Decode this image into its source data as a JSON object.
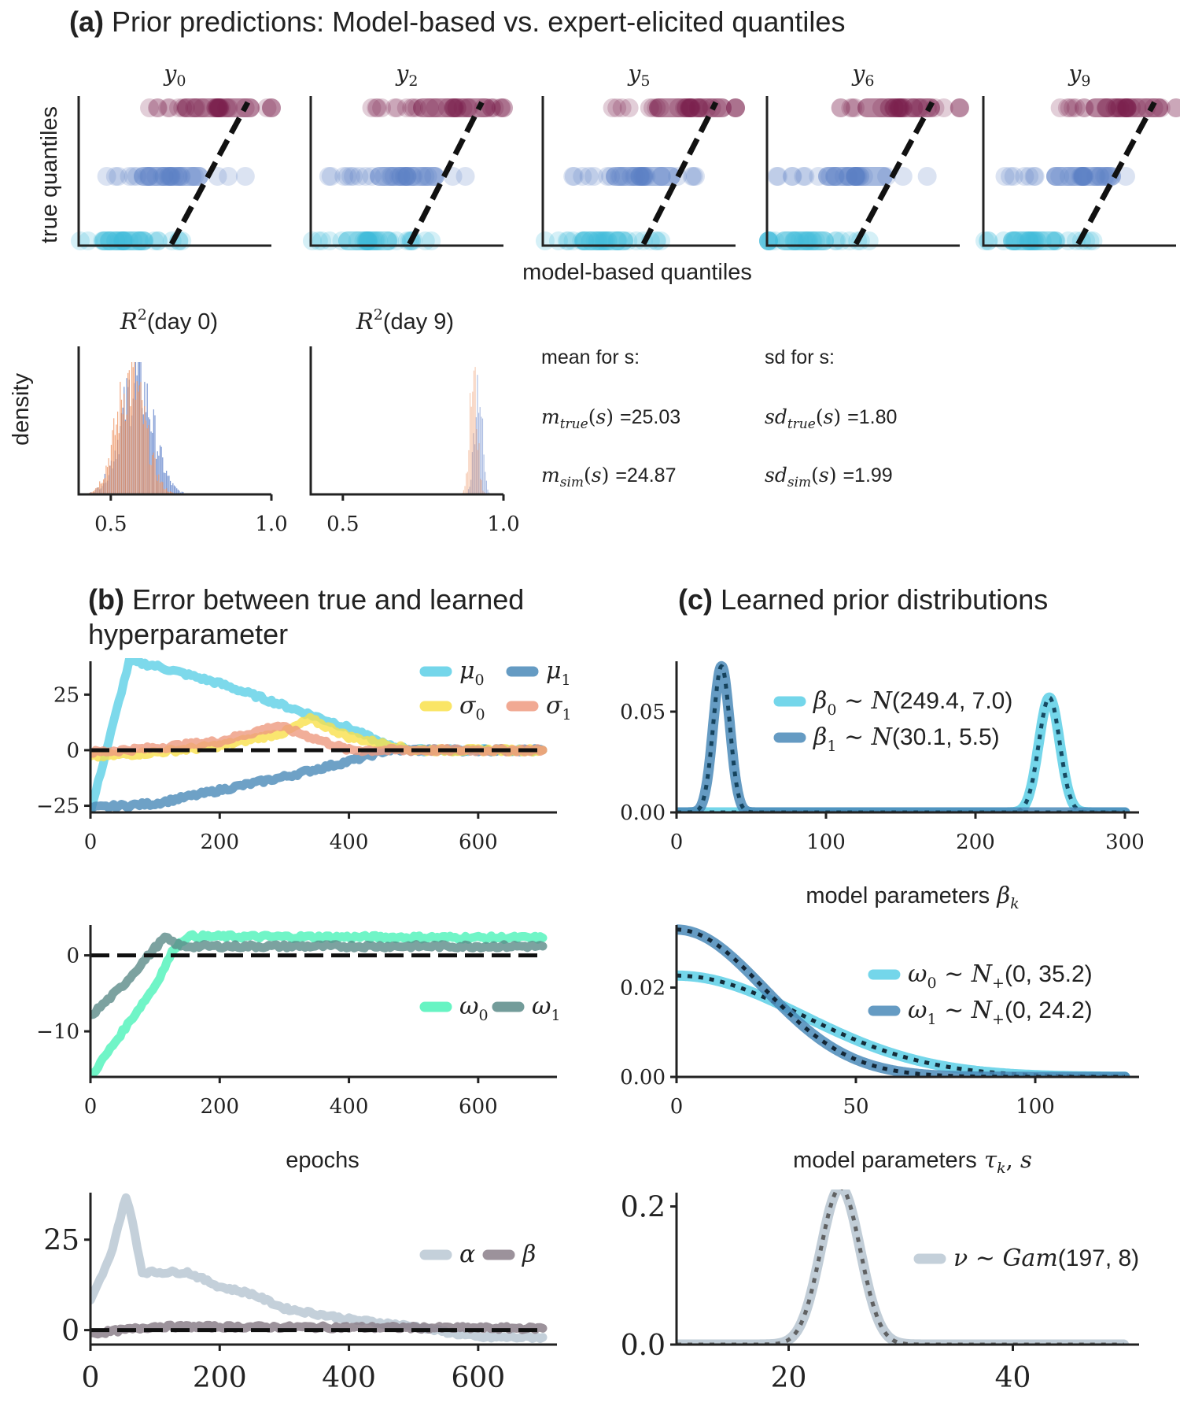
{
  "panel_a": {
    "title_bold": "(a)",
    "title_rest": " Prior predictions: Model-based vs. expert-elicited quantiles",
    "ylabel": "true quantiles",
    "xlabel": "model-based quantiles",
    "subplot_titles": [
      "y0",
      "y2",
      "y5",
      "y6",
      "y9"
    ],
    "subplot_title_subs": [
      "0",
      "2",
      "5",
      "6",
      "9"
    ]
  },
  "r2": {
    "ylabel": "density",
    "titles": [
      "R² (day 0)",
      "R² (day 9)"
    ],
    "title_suffixes": [
      "(day 0)",
      "(day 9)"
    ],
    "xticks": [
      "0.5",
      "1.0"
    ],
    "mean_header": "mean for s:",
    "sd_header": "sd for s:",
    "m_true": "=25.03",
    "m_sim": "=24.87",
    "sd_true": "=1.80",
    "sd_sim": "=1.99"
  },
  "panel_b": {
    "title_bold": "(b)",
    "title_line1": " Error between true and learned",
    "title_line2": "hyperparameter",
    "xlabel": "epochs"
  },
  "panel_c": {
    "title_bold": "(c)",
    "title_rest": " Learned prior distributions",
    "xlabel1": "model parameters",
    "xlabel2": "model parameters"
  },
  "colors": {
    "cyan": "#5ccfe6",
    "blue": "#4a8ab8",
    "yellow": "#f9e04b",
    "salmon": "#ee9a80",
    "mint": "#4cf2b9",
    "teal": "#5b8b88",
    "grayblue": "#bac8d3",
    "mauve": "#8b7f8a",
    "maroon": "#7a1f4c",
    "qblue": "#5b7fc4",
    "qcyan": "#3fbcd9",
    "hist_orange": "#ec8d5a",
    "hist_blue": "#4f74c4"
  },
  "chart_data": [
    {
      "id": "b1",
      "type": "line",
      "xlim": [
        0,
        700
      ],
      "ylim": [
        -28,
        40
      ],
      "xticks": [
        0,
        200,
        400,
        600
      ],
      "yticks": [
        -25,
        0,
        25
      ],
      "ytick_labels": [
        "−25",
        "0",
        "25"
      ],
      "reference_line": 0,
      "series": [
        {
          "name": "μ0",
          "x": [
            0,
            60,
            100,
            200,
            300,
            400,
            460,
            500,
            700
          ],
          "y": [
            -28,
            40,
            38,
            30,
            20,
            10,
            2,
            0,
            0
          ]
        },
        {
          "name": "μ1",
          "x": [
            0,
            100,
            200,
            300,
            400,
            460,
            500,
            700
          ],
          "y": [
            -26,
            -24,
            -18,
            -12,
            -5,
            0,
            0,
            0
          ]
        },
        {
          "name": "σ0",
          "x": [
            0,
            100,
            200,
            300,
            340,
            400,
            500,
            700
          ],
          "y": [
            -3,
            -1,
            2,
            8,
            14,
            6,
            0,
            0
          ]
        },
        {
          "name": "σ1",
          "x": [
            0,
            100,
            200,
            290,
            400,
            700
          ],
          "y": [
            -1,
            1,
            4,
            11,
            0,
            0
          ]
        }
      ]
    },
    {
      "id": "b2",
      "type": "line",
      "xlim": [
        0,
        700
      ],
      "ylim": [
        -16,
        4
      ],
      "xticks": [
        0,
        200,
        400,
        600
      ],
      "yticks": [
        -10,
        0
      ],
      "ytick_labels": [
        "−10",
        "0"
      ],
      "reference_line": 0,
      "series": [
        {
          "name": "ω0",
          "x": [
            0,
            50,
            100,
            130,
            150,
            700
          ],
          "y": [
            -16,
            -10,
            -4,
            1,
            2.5,
            2.3
          ]
        },
        {
          "name": "ω1",
          "x": [
            0,
            50,
            100,
            115,
            140,
            700
          ],
          "y": [
            -8,
            -4,
            1,
            2.3,
            1.2,
            1.2
          ]
        }
      ]
    },
    {
      "id": "b3",
      "type": "line",
      "xlim": [
        0,
        700
      ],
      "ylim": [
        -4,
        38
      ],
      "xticks": [
        0,
        200,
        400,
        600
      ],
      "yticks": [
        0,
        25
      ],
      "ytick_labels": [
        "0",
        "25"
      ],
      "reference_line": 0,
      "series": [
        {
          "name": "α",
          "x": [
            0,
            30,
            55,
            65,
            80,
            150,
            200,
            250,
            300,
            400,
            500,
            600,
            700
          ],
          "y": [
            8,
            20,
            37,
            30,
            16,
            16,
            12,
            10,
            6,
            3,
            1,
            -2,
            -2
          ]
        },
        {
          "name": "β",
          "x": [
            0,
            50,
            100,
            700
          ],
          "y": [
            -1,
            0,
            1,
            0.5
          ]
        }
      ]
    },
    {
      "id": "c1",
      "type": "line",
      "xlim": [
        0,
        300
      ],
      "ylim": [
        0,
        0.075
      ],
      "xticks": [
        0,
        100,
        200,
        300
      ],
      "yticks": [
        0,
        0.05
      ],
      "ytick_labels": [
        "0.00",
        "0.05"
      ],
      "xlabel_math": "βk",
      "series": [
        {
          "name": "β0 ~ N(249.4, 7.0)",
          "kind": "normal",
          "mu": 249.4,
          "sigma": 7.0
        },
        {
          "name": "β1 ~ N(30.1, 5.5)",
          "kind": "normal",
          "mu": 30.1,
          "sigma": 5.5
        }
      ],
      "legend_suffixes": [
        "(249.4, 7.0)",
        "(30.1, 5.5)"
      ]
    },
    {
      "id": "c2",
      "type": "line",
      "xlim": [
        0,
        125
      ],
      "ylim": [
        0,
        0.034
      ],
      "xticks": [
        0,
        50,
        100
      ],
      "yticks": [
        0,
        0.02
      ],
      "ytick_labels": [
        "0.00",
        "0.02"
      ],
      "xlabel_math": "τk, s",
      "series": [
        {
          "name": "ω0 ~ N+(0, 35.2)",
          "kind": "halfnormal",
          "sigma": 35.2
        },
        {
          "name": "ω1 ~ N+(0, 24.2)",
          "kind": "halfnormal",
          "sigma": 24.2
        }
      ],
      "legend_suffixes": [
        "(0, 35.2)",
        "(0, 24.2)"
      ]
    },
    {
      "id": "c3",
      "type": "line",
      "xlim": [
        10,
        50
      ],
      "ylim": [
        0,
        0.22
      ],
      "xticks": [
        20,
        40
      ],
      "yticks": [
        0,
        0.2
      ],
      "ytick_labels": [
        "0.0",
        "0.2"
      ],
      "series": [
        {
          "name": "ν ~ Gam(197, 8)",
          "kind": "gamma",
          "shape": 197,
          "rate": 8
        }
      ],
      "legend_suffixes": [
        "(197, 8)"
      ]
    },
    {
      "id": "r2_day0",
      "type": "histogram",
      "xlim": [
        0.4,
        1.0
      ],
      "xticks": [
        0.5,
        1.0
      ],
      "series": [
        {
          "name": "true",
          "center": 0.58,
          "sd": 0.05
        },
        {
          "name": "sim",
          "center": 0.56,
          "sd": 0.045
        }
      ]
    },
    {
      "id": "r2_day9",
      "type": "histogram",
      "xlim": [
        0.4,
        1.0
      ],
      "xticks": [
        0.5,
        1.0
      ],
      "series": [
        {
          "name": "true",
          "center": 0.92,
          "sd": 0.012
        },
        {
          "name": "sim",
          "center": 0.905,
          "sd": 0.012
        }
      ]
    }
  ]
}
